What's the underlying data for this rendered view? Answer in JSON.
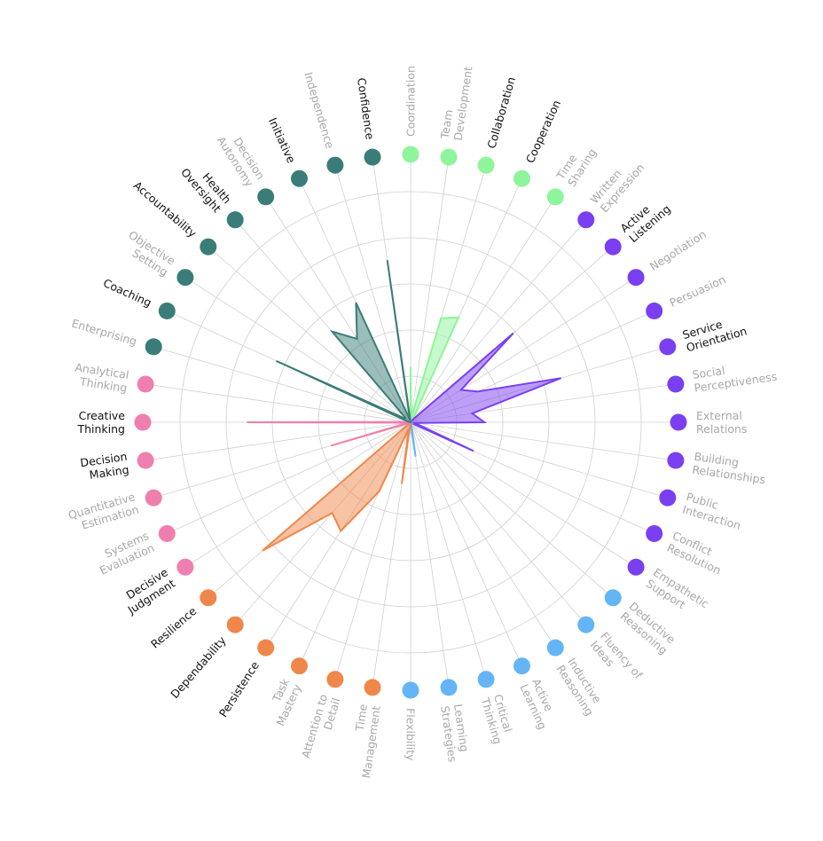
{
  "chart_data": {
    "type": "radar",
    "title": "",
    "grid": true,
    "rmax": 10,
    "colors": {
      "teal": "#3a7d78",
      "green": "#8ef59a",
      "purple": "#7b3ff2",
      "blue": "#64b5f6",
      "orange": "#f0874a",
      "pink": "#ef7fae",
      "label_strong": "#111111",
      "label_muted": "#a8a8a8",
      "grid_line": "#d0d0d0"
    },
    "categories": [
      {
        "lines": [
          "Coordination"
        ],
        "group": "green",
        "strong": false,
        "value": 2.4
      },
      {
        "lines": [
          "Team",
          "Development"
        ],
        "group": "green",
        "strong": false,
        "value": 0.2
      },
      {
        "lines": [
          "Collaboration"
        ],
        "group": "green",
        "strong": true,
        "value": 4.7
      },
      {
        "lines": [
          "Cooperation"
        ],
        "group": "green",
        "strong": true,
        "value": 5.0
      },
      {
        "lines": [
          "Time",
          "Sharing"
        ],
        "group": "green",
        "strong": false,
        "value": 0.2
      },
      {
        "lines": [
          "Written",
          "Expression"
        ],
        "group": "purple",
        "strong": false,
        "value": 0.2
      },
      {
        "lines": [
          "Active",
          "Listening"
        ],
        "group": "purple",
        "strong": true,
        "value": 5.9
      },
      {
        "lines": [
          "Negotiation"
        ],
        "group": "purple",
        "strong": false,
        "value": 2.6
      },
      {
        "lines": [
          "Persuasion"
        ],
        "group": "purple",
        "strong": false,
        "value": 3.2
      },
      {
        "lines": [
          "Service",
          "Orientation"
        ],
        "group": "purple",
        "strong": true,
        "value": 6.8
      },
      {
        "lines": [
          "Social",
          "Perceptiveness"
        ],
        "group": "purple",
        "strong": false,
        "value": 2.7
      },
      {
        "lines": [
          "External",
          "Relations"
        ],
        "group": "purple",
        "strong": false,
        "value": 3.2
      },
      {
        "lines": [
          "Building",
          "Relationships"
        ],
        "group": "purple",
        "strong": false,
        "value": 0.2
      },
      {
        "lines": [
          "Public",
          "Interaction"
        ],
        "group": "purple",
        "strong": false,
        "value": 0.3
      },
      {
        "lines": [
          "Conflict",
          "Resolution"
        ],
        "group": "purple",
        "strong": false,
        "value": 3.0
      },
      {
        "lines": [
          "Empathetic",
          "Support"
        ],
        "group": "purple",
        "strong": false,
        "value": 0.1
      },
      {
        "lines": [
          "Deductive",
          "Reasoning"
        ],
        "group": "blue",
        "strong": false,
        "value": 0.1
      },
      {
        "lines": [
          "Fluency of",
          "Ideas"
        ],
        "group": "blue",
        "strong": false,
        "value": 0.1
      },
      {
        "lines": [
          "Inductive",
          "Reasoning"
        ],
        "group": "blue",
        "strong": false,
        "value": 0.1
      },
      {
        "lines": [
          "Active",
          "Learning"
        ],
        "group": "blue",
        "strong": false,
        "value": 0.1
      },
      {
        "lines": [
          "Critical",
          "Thinking"
        ],
        "group": "blue",
        "strong": false,
        "value": 0.1
      },
      {
        "lines": [
          "Learning",
          "Strategies"
        ],
        "group": "blue",
        "strong": false,
        "value": 1.5
      },
      {
        "lines": [
          "Flexibility"
        ],
        "group": "blue",
        "strong": false,
        "value": 0.1
      },
      {
        "lines": [
          "Time",
          "Management"
        ],
        "group": "orange",
        "strong": false,
        "value": 2.7
      },
      {
        "lines": [
          "Attention to",
          "Detail"
        ],
        "group": "orange",
        "strong": false,
        "value": 0.3
      },
      {
        "lines": [
          "Task",
          "Mastery"
        ],
        "group": "orange",
        "strong": false,
        "value": 3.3
      },
      {
        "lines": [
          "Persistence"
        ],
        "group": "orange",
        "strong": true,
        "value": 5.6
      },
      {
        "lines": [
          "Dependability"
        ],
        "group": "orange",
        "strong": true,
        "value": 5.2
      },
      {
        "lines": [
          "Resilience"
        ],
        "group": "orange",
        "strong": true,
        "value": 8.5
      },
      {
        "lines": [
          "Decisive",
          "Judgment"
        ],
        "group": "pink",
        "strong": true,
        "value": 0.1
      },
      {
        "lines": [
          "Systems",
          "Evaluation"
        ],
        "group": "pink",
        "strong": false,
        "value": 0.1
      },
      {
        "lines": [
          "Quantitative",
          "Estimation"
        ],
        "group": "pink",
        "strong": false,
        "value": 3.6
      },
      {
        "lines": [
          "Decision",
          "Making"
        ],
        "group": "pink",
        "strong": true,
        "value": 0.1
      },
      {
        "lines": [
          "Creative",
          "Thinking"
        ],
        "group": "pink",
        "strong": true,
        "value": 7.1
      },
      {
        "lines": [
          "Analytical",
          "Thinking"
        ],
        "group": "pink",
        "strong": false,
        "value": 0.1
      },
      {
        "lines": [
          "Enterprising"
        ],
        "group": "teal",
        "strong": false,
        "value": 0.1
      },
      {
        "lines": [
          "Coaching"
        ],
        "group": "teal",
        "strong": true,
        "value": 6.4
      },
      {
        "lines": [
          "Objective",
          "Setting"
        ],
        "group": "teal",
        "strong": false,
        "value": 0.3
      },
      {
        "lines": [
          "Accountability"
        ],
        "group": "teal",
        "strong": true,
        "value": 0.3
      },
      {
        "lines": [
          "Health",
          "Oversight"
        ],
        "group": "teal",
        "strong": true,
        "value": 5.2
      },
      {
        "lines": [
          "Decision",
          "Autonomy"
        ],
        "group": "teal",
        "strong": false,
        "value": 4.3
      },
      {
        "lines": [
          "Initiative"
        ],
        "group": "teal",
        "strong": true,
        "value": 5.7
      },
      {
        "lines": [
          "Independence"
        ],
        "group": "teal",
        "strong": false,
        "value": 0.1
      },
      {
        "lines": [
          "Confidence"
        ],
        "group": "teal",
        "strong": true,
        "value": 7.1
      }
    ]
  }
}
